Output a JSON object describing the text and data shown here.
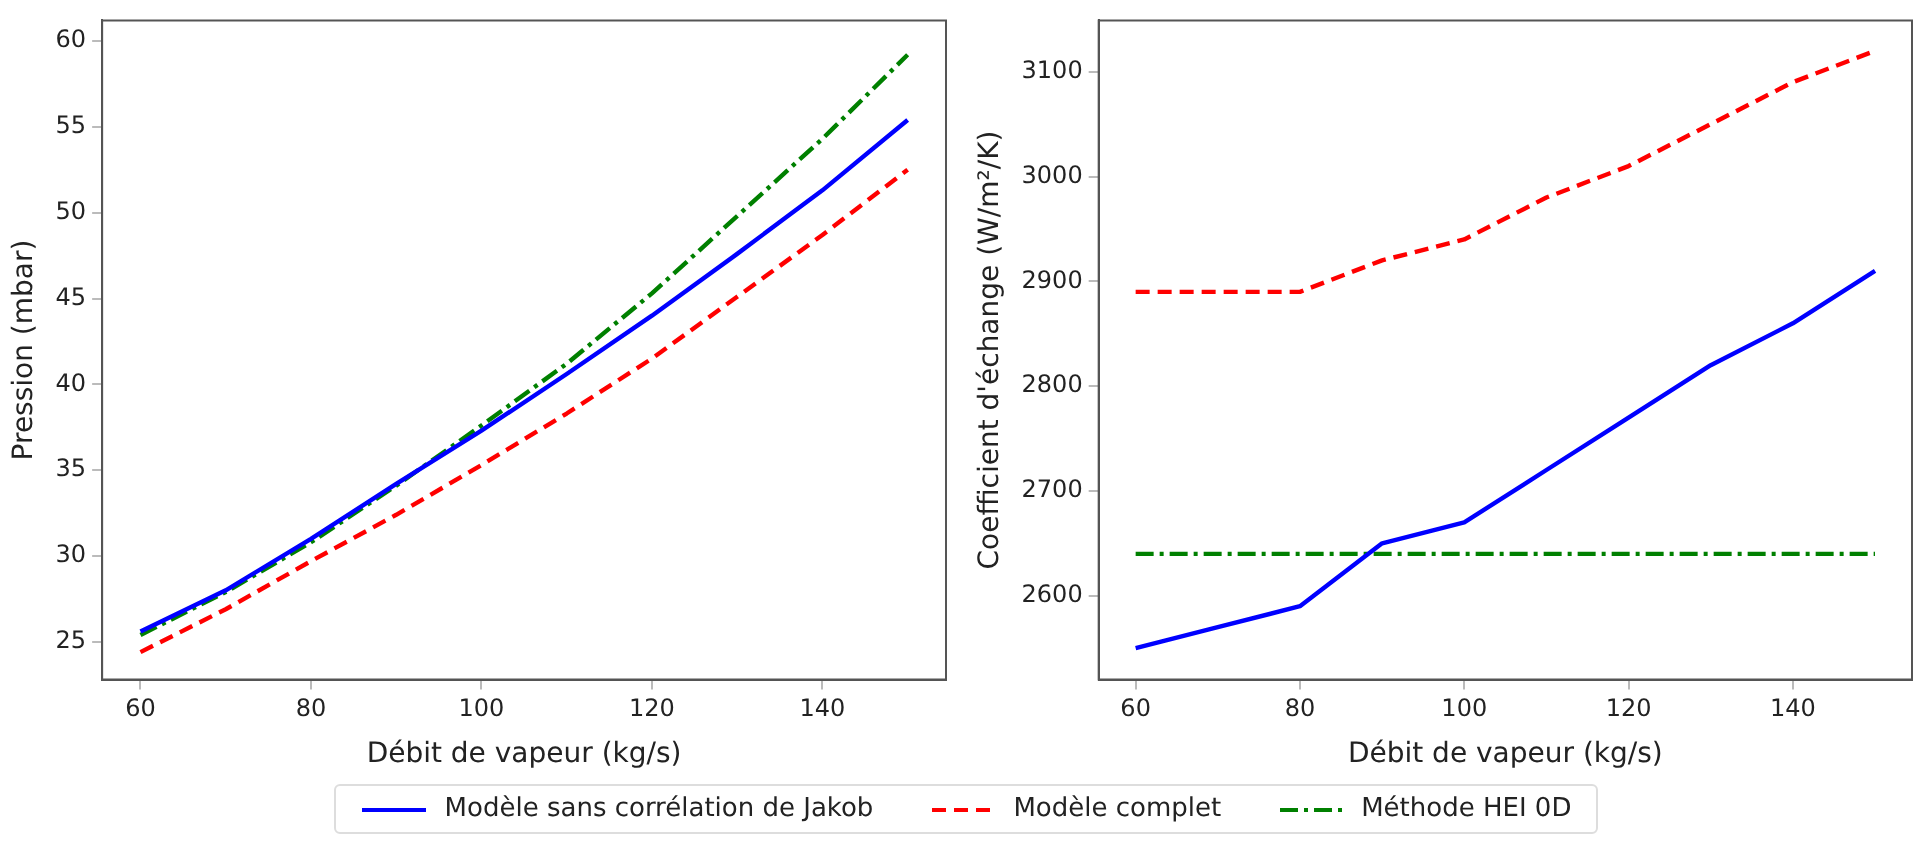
{
  "chart_data": [
    {
      "type": "line",
      "xlabel": "Débit de vapeur (kg/s)",
      "ylabel": "Pression (mbar)",
      "x": [
        60,
        70,
        80,
        90,
        100,
        110,
        120,
        130,
        140,
        150
      ],
      "xlim": [
        55.5,
        154.5
      ],
      "xticks": [
        60,
        80,
        100,
        120,
        140
      ],
      "ylim": [
        22.8,
        61.2
      ],
      "yticks": [
        25,
        30,
        35,
        40,
        45,
        50,
        55,
        60
      ],
      "grid": false,
      "legend": "bottom",
      "marker": "none",
      "series": [
        {
          "name": "Modèle sans corrélation de Jakob",
          "color": "#0000ff",
          "line_style": "solid",
          "values": [
            25.6,
            28.0,
            31.0,
            34.2,
            37.3,
            40.6,
            44.0,
            47.6,
            51.3,
            55.4
          ]
        },
        {
          "name": "Modèle complet",
          "color": "#ff0000",
          "line_style": "dashed",
          "values": [
            24.4,
            26.9,
            29.7,
            32.4,
            35.3,
            38.3,
            41.5,
            45.1,
            48.7,
            52.5
          ]
        },
        {
          "name": "Méthode HEI 0D",
          "color": "#008000",
          "line_style": "dashdot",
          "values": [
            25.4,
            27.9,
            30.8,
            34.1,
            37.6,
            41.2,
            45.3,
            49.8,
            54.3,
            59.2
          ]
        }
      ]
    },
    {
      "type": "line",
      "xlabel": "Débit de vapeur (kg/s)",
      "ylabel": "Coefficient d'échange (W/m²/K)",
      "x": [
        60,
        70,
        80,
        90,
        100,
        110,
        120,
        130,
        140,
        150
      ],
      "xlim": [
        55.5,
        154.5
      ],
      "xticks": [
        60,
        80,
        100,
        120,
        140
      ],
      "ylim": [
        2520,
        3149
      ],
      "yticks": [
        2600,
        2700,
        2800,
        2900,
        3000,
        3100
      ],
      "grid": false,
      "marker": "none",
      "series": [
        {
          "color": "#0000ff",
          "line_style": "solid",
          "values": [
            2550,
            2570,
            2590,
            2650,
            2670,
            2720,
            2770,
            2820,
            2860,
            2910
          ]
        },
        {
          "color": "#ff0000",
          "line_style": "dashed",
          "values": [
            2890,
            2890,
            2890,
            2920,
            2940,
            2980,
            3010,
            3050,
            3090,
            3120
          ]
        },
        {
          "color": "#008000",
          "line_style": "dashdot",
          "values": [
            2640,
            2640,
            2640,
            2640,
            2640,
            2640,
            2640,
            2640,
            2640,
            2640
          ]
        }
      ]
    }
  ]
}
